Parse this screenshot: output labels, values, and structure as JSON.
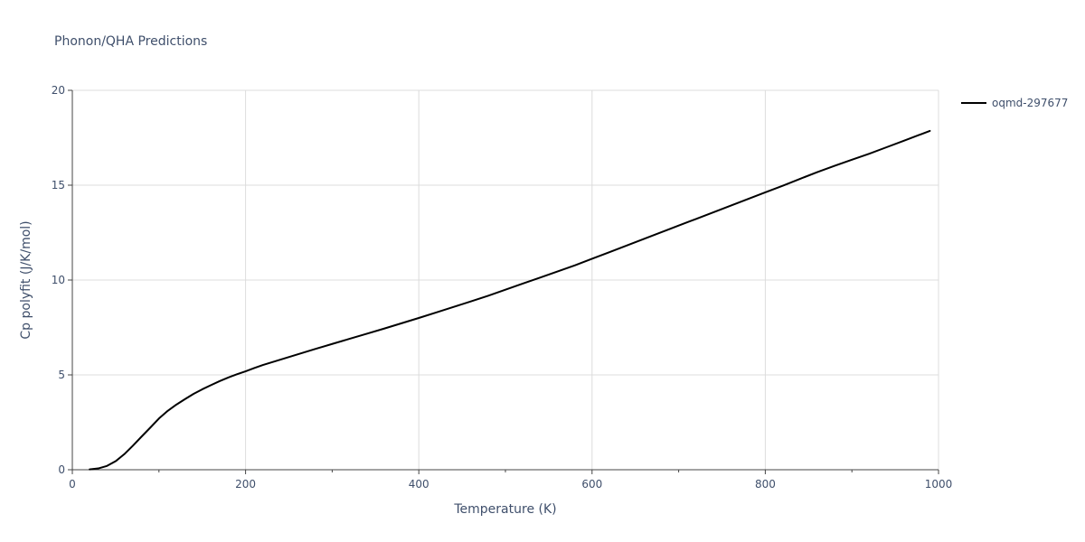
{
  "chart_data": {
    "type": "line",
    "title": "Phonon/QHA Predictions",
    "xlabel": "Temperature (K)",
    "ylabel": "Cp polyfit (J/K/mol)",
    "xlim": [
      0,
      1000
    ],
    "ylim": [
      0,
      20
    ],
    "x_ticks": [
      0,
      200,
      400,
      600,
      800,
      1000
    ],
    "y_ticks": [
      0,
      5,
      10,
      15,
      20
    ],
    "x_minor_ticks": [
      100,
      300,
      500,
      700,
      900
    ],
    "grid": true,
    "legend_position": "top-right",
    "series": [
      {
        "name": "oqmd-297677",
        "color": "#000000",
        "x": [
          20,
          30,
          40,
          50,
          60,
          70,
          80,
          90,
          100,
          110,
          120,
          130,
          140,
          150,
          160,
          170,
          180,
          190,
          200,
          210,
          220,
          240,
          260,
          280,
          300,
          320,
          340,
          360,
          380,
          400,
          420,
          440,
          460,
          480,
          500,
          520,
          540,
          560,
          580,
          600,
          620,
          640,
          660,
          680,
          700,
          720,
          740,
          760,
          780,
          800,
          820,
          840,
          860,
          880,
          900,
          920,
          940,
          960,
          980,
          990
        ],
        "y": [
          0.02,
          0.07,
          0.2,
          0.45,
          0.82,
          1.27,
          1.75,
          2.22,
          2.7,
          3.1,
          3.43,
          3.72,
          4.0,
          4.24,
          4.46,
          4.67,
          4.86,
          5.03,
          5.19,
          5.36,
          5.52,
          5.8,
          6.08,
          6.36,
          6.63,
          6.9,
          7.17,
          7.44,
          7.72,
          8.0,
          8.29,
          8.58,
          8.87,
          9.17,
          9.49,
          9.81,
          10.13,
          10.45,
          10.77,
          11.12,
          11.47,
          11.82,
          12.17,
          12.52,
          12.87,
          13.22,
          13.57,
          13.92,
          14.27,
          14.62,
          14.97,
          15.33,
          15.69,
          16.02,
          16.34,
          16.66,
          17.0,
          17.34,
          17.69,
          17.86
        ]
      }
    ]
  }
}
